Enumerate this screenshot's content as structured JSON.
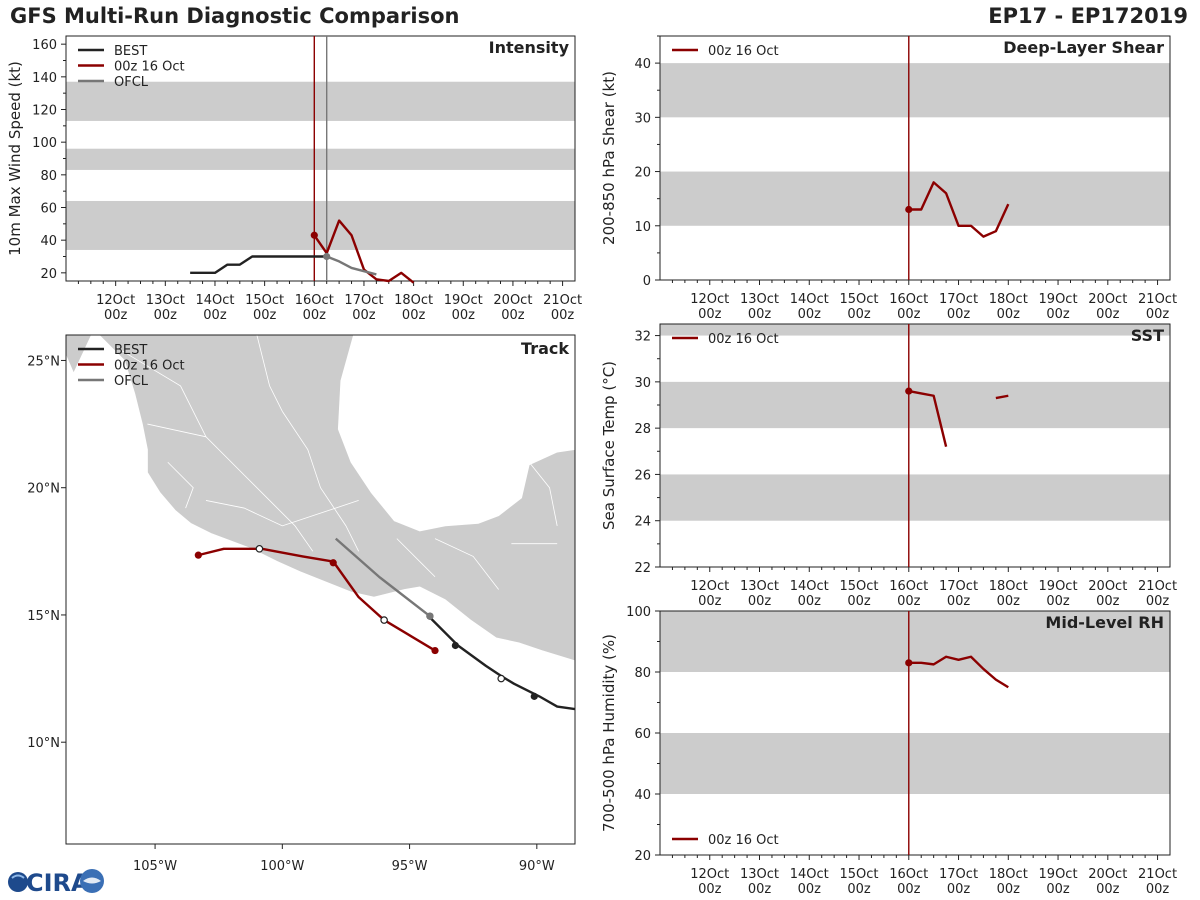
{
  "header": {
    "title": "GFS Multi-Run Diagnostic Comparison",
    "storm": "EP17 - EP172019"
  },
  "logo": {
    "text": "CIRA"
  },
  "colors": {
    "best": "#222222",
    "run": "#8b0000",
    "ofcl": "#777777",
    "band": "#cccccc",
    "land": "#cccccc"
  },
  "time_axis": {
    "labels_top": [
      "12Oct",
      "13Oct",
      "14Oct",
      "15Oct",
      "16Oct",
      "17Oct",
      "18Oct",
      "19Oct",
      "20Oct",
      "21Oct"
    ],
    "labels_bottom": [
      "00z",
      "00z",
      "00z",
      "00z",
      "00z",
      "00z",
      "00z",
      "00z",
      "00z",
      "00z"
    ]
  },
  "chart_data": [
    {
      "type": "line",
      "id": "intensity",
      "title": "Intensity",
      "ylabel": "10m Max Wind Speed (kt)",
      "xlim": [
        11.0,
        21.25
      ],
      "ylim": [
        15,
        165
      ],
      "yticks": [
        20,
        40,
        60,
        80,
        100,
        120,
        140,
        160
      ],
      "bands": [
        [
          34,
          64
        ],
        [
          83,
          96
        ],
        [
          113,
          137
        ]
      ],
      "vlines": [
        {
          "x": 16.0,
          "color": "run"
        },
        {
          "x": 16.25,
          "color": "ofcl"
        }
      ],
      "legend": [
        "BEST",
        "00z 16 Oct",
        "OFCL"
      ],
      "series": [
        {
          "name": "BEST",
          "color": "best",
          "x": [
            13.5,
            14.0,
            14.25,
            14.5,
            14.75,
            15.0,
            15.25,
            15.5,
            15.75,
            16.0,
            16.25
          ],
          "y": [
            20,
            20,
            25,
            25,
            30,
            30,
            30,
            30,
            30,
            30,
            30
          ],
          "start_marker": false
        },
        {
          "name": "00z 16 Oct",
          "color": "run",
          "x": [
            16.0,
            16.25,
            16.5,
            16.75,
            17.0,
            17.25,
            17.5,
            17.75,
            18.0
          ],
          "y": [
            43,
            32,
            52,
            43,
            22,
            16,
            15,
            20,
            14
          ],
          "start_marker": true
        },
        {
          "name": "OFCL",
          "color": "ofcl",
          "x": [
            16.25,
            16.5,
            16.75,
            17.0,
            17.25
          ],
          "y": [
            30,
            27,
            23,
            21,
            19
          ],
          "start_marker": true
        }
      ]
    },
    {
      "type": "line",
      "id": "shear",
      "title": "Deep-Layer Shear",
      "ylabel": "200-850 hPa Shear (kt)",
      "xlim": [
        11.0,
        21.25
      ],
      "ylim": [
        0,
        45
      ],
      "yticks": [
        0,
        10,
        20,
        30,
        40
      ],
      "bands": [
        [
          10,
          20
        ],
        [
          30,
          40
        ]
      ],
      "vlines": [
        {
          "x": 16.0,
          "color": "run"
        }
      ],
      "legend": [
        "00z 16 Oct"
      ],
      "series": [
        {
          "name": "00z 16 Oct",
          "color": "run",
          "x": [
            16.0,
            16.25,
            16.5,
            16.75,
            17.0,
            17.25,
            17.5,
            17.75,
            18.0
          ],
          "y": [
            13,
            13,
            18,
            16,
            10,
            10,
            8,
            9,
            14
          ],
          "start_marker": true
        }
      ]
    },
    {
      "type": "line",
      "id": "sst",
      "title": "SST",
      "ylabel": "Sea Surface Temp (°C)",
      "xlim": [
        11.0,
        21.25
      ],
      "ylim": [
        22,
        32.5
      ],
      "yticks": [
        22,
        24,
        26,
        28,
        30,
        32
      ],
      "bands": [
        [
          24,
          26
        ],
        [
          28,
          30
        ],
        [
          32,
          32.5
        ]
      ],
      "vlines": [
        {
          "x": 16.0,
          "color": "run"
        }
      ],
      "legend": [
        "00z 16 Oct"
      ],
      "series": [
        {
          "name": "00z 16 Oct",
          "color": "run",
          "x": [
            16.0,
            16.25,
            16.5,
            16.75
          ],
          "y": [
            29.6,
            29.5,
            29.4,
            27.2
          ],
          "start_marker": true
        },
        {
          "name": "00z 16 Oct",
          "color": "run",
          "x": [
            17.75,
            18.0
          ],
          "y": [
            29.3,
            29.4
          ],
          "start_marker": false
        }
      ]
    },
    {
      "type": "line",
      "id": "rh",
      "title": "Mid-Level RH",
      "ylabel": "700-500 hPa Humidity (%)",
      "xlim": [
        11.0,
        21.25
      ],
      "ylim": [
        20,
        100
      ],
      "yticks": [
        20,
        40,
        60,
        80,
        100
      ],
      "bands": [
        [
          40,
          60
        ],
        [
          80,
          100
        ]
      ],
      "vlines": [
        {
          "x": 16.0,
          "color": "run"
        }
      ],
      "legend": [
        "00z 16 Oct"
      ],
      "legend_pos": "bottom-left",
      "series": [
        {
          "name": "00z 16 Oct",
          "color": "run",
          "x": [
            16.0,
            16.25,
            16.5,
            16.75,
            17.0,
            17.25,
            17.5,
            17.75,
            18.0
          ],
          "y": [
            83,
            83,
            82.5,
            85,
            84,
            85,
            81,
            77.5,
            75
          ],
          "start_marker": true
        }
      ]
    },
    {
      "type": "map",
      "id": "track",
      "title": "Track",
      "lonlim": [
        -108.5,
        -88.5
      ],
      "latlim": [
        6,
        26
      ],
      "lon_ticks": [
        -105,
        -100,
        -95,
        -90
      ],
      "lon_labels": [
        "105°W",
        "100°W",
        "95°W",
        "90°W"
      ],
      "lat_ticks": [
        10,
        15,
        20,
        25
      ],
      "lat_labels": [
        "10°N",
        "15°N",
        "20°N",
        "25°N"
      ],
      "legend": [
        "BEST",
        "00z 16 Oct",
        "OFCL"
      ],
      "tracks": [
        {
          "name": "BEST",
          "color": "best",
          "points": [
            [
              11.3,
              -88.5
            ],
            [
              11.4,
              -89.2
            ],
            [
              11.8,
              -89.9
            ],
            [
              12.3,
              -90.9
            ],
            [
              12.6,
              -91.4
            ],
            [
              13.0,
              -92.0
            ],
            [
              13.8,
              -93.1
            ],
            [
              14.9,
              -94.2
            ]
          ],
          "filled": [
            [
              11.8,
              -90.1
            ],
            [
              13.8,
              -93.2
            ],
            [
              14.95,
              -94.2
            ]
          ],
          "open": [
            [
              12.5,
              -91.4
            ]
          ]
        },
        {
          "name": "00z 16 Oct",
          "color": "run",
          "points": [
            [
              17.35,
              -103.3
            ],
            [
              17.6,
              -102.3
            ],
            [
              17.6,
              -100.8
            ],
            [
              17.3,
              -99.2
            ],
            [
              17.1,
              -98.0
            ],
            [
              15.7,
              -97.0
            ],
            [
              14.8,
              -96.0
            ],
            [
              14.2,
              -95.0
            ],
            [
              13.6,
              -94.0
            ]
          ],
          "filled": [
            [
              17.35,
              -103.3
            ],
            [
              17.05,
              -98.0
            ],
            [
              13.6,
              -94.0
            ]
          ],
          "open": [
            [
              17.6,
              -100.9
            ],
            [
              14.8,
              -96.0
            ]
          ]
        },
        {
          "name": "OFCL",
          "color": "ofcl",
          "points": [
            [
              14.95,
              -94.2
            ],
            [
              16.5,
              -96.2
            ],
            [
              18.0,
              -97.9
            ]
          ],
          "filled": [
            [
              14.95,
              -94.2
            ]
          ],
          "open": []
        }
      ]
    }
  ]
}
